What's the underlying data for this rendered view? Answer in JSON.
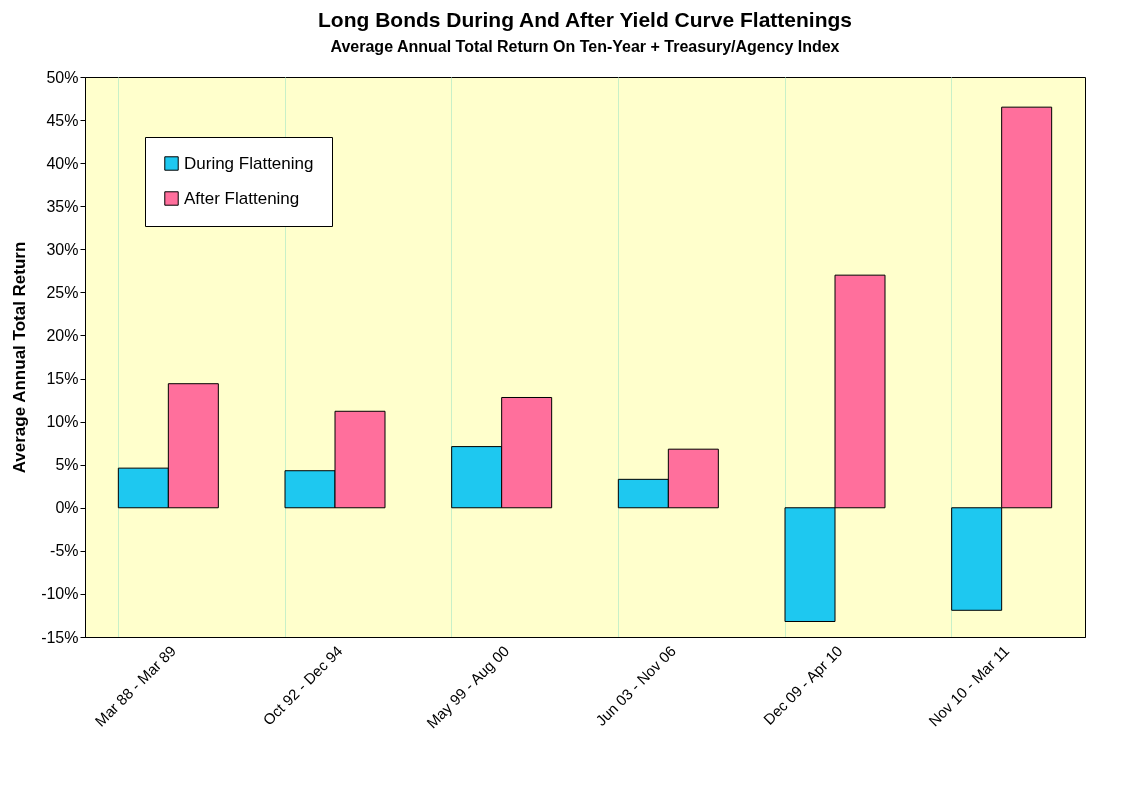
{
  "chart_data": {
    "type": "bar",
    "title": "Long Bonds During And After Yield Curve Flattenings",
    "subtitle": "Average Annual Total Return On Ten-Year + Treasury/Agency Index",
    "ylabel": "Average Annual Total Return",
    "categories": [
      "Mar 88 - Mar 89",
      "Oct 92 - Dec 94",
      "May 99 - Aug 00",
      "Jun 03 - Nov 06",
      "Dec 09 - Apr 10",
      "Nov 10 - Mar 11"
    ],
    "series": [
      {
        "name": "During Flattening",
        "color": "#1ec8f0",
        "values": [
          4.6,
          4.3,
          7.1,
          3.3,
          -13.2,
          -11.9
        ]
      },
      {
        "name": "After Flattening",
        "color": "#ff6f9c",
        "values": [
          14.4,
          11.2,
          12.8,
          6.8,
          27.0,
          46.5
        ]
      }
    ],
    "ylim": [
      -15,
      50
    ],
    "yticks": [
      {
        "value": -15,
        "label": "-15%"
      },
      {
        "value": -10,
        "label": "-10%"
      },
      {
        "value": -5,
        "label": "-5%"
      },
      {
        "value": 0,
        "label": "0%"
      },
      {
        "value": 5,
        "label": "5%"
      },
      {
        "value": 10,
        "label": "10%"
      },
      {
        "value": 15,
        "label": "15%"
      },
      {
        "value": 20,
        "label": "20%"
      },
      {
        "value": 25,
        "label": "25%"
      },
      {
        "value": 30,
        "label": "30%"
      },
      {
        "value": 35,
        "label": "35%"
      },
      {
        "value": 40,
        "label": "40%"
      },
      {
        "value": 45,
        "label": "45%"
      },
      {
        "value": 50,
        "label": "50%"
      }
    ],
    "grid": "x",
    "legend": "top left"
  }
}
